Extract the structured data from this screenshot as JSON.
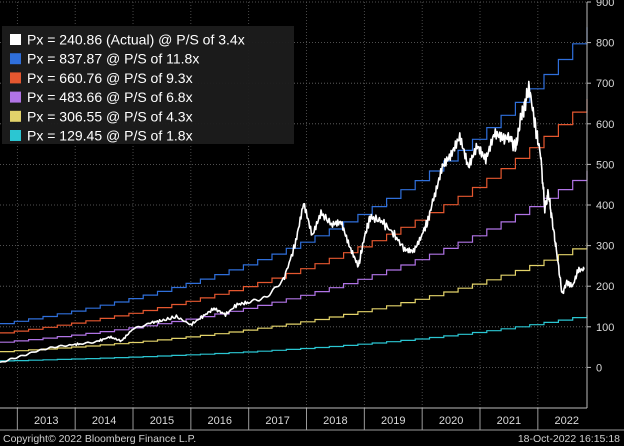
{
  "chart_data": {
    "type": "line",
    "title": "",
    "xlabel": "",
    "ylabel": "",
    "x_categories": [
      "2013",
      "2014",
      "2015",
      "2016",
      "2017",
      "2018",
      "2019",
      "2020",
      "2021",
      "2022"
    ],
    "x_range": [
      2012.7,
      2022.85
    ],
    "ylim": [
      -100,
      900
    ],
    "y_ticks": [
      0,
      100,
      200,
      300,
      400,
      500,
      600,
      700,
      800,
      900
    ],
    "y_tick_labels": [
      "0",
      "100",
      "200",
      "300",
      "400",
      "500",
      "600",
      "700",
      "800",
      "900"
    ],
    "grid": true,
    "legend_position": "top-left",
    "series": [
      {
        "name": "Px = 240.86 (Actual) @ P/S of 3.4x",
        "color": "#ffffff",
        "kind": "price",
        "x": [
          2012.7,
          2013.0,
          2013.3,
          2013.6,
          2013.9,
          2014.1,
          2014.4,
          2014.6,
          2014.8,
          2015.0,
          2015.3,
          2015.5,
          2015.75,
          2016.0,
          2016.2,
          2016.4,
          2016.6,
          2016.8,
          2017.0,
          2017.3,
          2017.6,
          2017.8,
          2017.95,
          2018.1,
          2018.25,
          2018.45,
          2018.6,
          2018.75,
          2018.9,
          2019.0,
          2019.1,
          2019.3,
          2019.5,
          2019.7,
          2019.85,
          2020.0,
          2020.1,
          2020.2,
          2020.35,
          2020.5,
          2020.65,
          2020.8,
          2020.95,
          2021.1,
          2021.25,
          2021.4,
          2021.5,
          2021.62,
          2021.7,
          2021.78,
          2021.85,
          2021.95,
          2022.05,
          2022.12,
          2022.18,
          2022.25,
          2022.32,
          2022.42,
          2022.5,
          2022.6,
          2022.7,
          2022.8
        ],
        "y": [
          10,
          25,
          40,
          48,
          55,
          58,
          65,
          75,
          65,
          95,
          110,
          115,
          125,
          105,
          125,
          145,
          130,
          155,
          160,
          175,
          215,
          300,
          400,
          320,
          380,
          350,
          360,
          300,
          250,
          320,
          370,
          360,
          330,
          290,
          290,
          330,
          360,
          420,
          500,
          520,
          560,
          490,
          550,
          520,
          580,
          560,
          570,
          540,
          610,
          650,
          690,
          600,
          520,
          390,
          430,
          360,
          290,
          180,
          210,
          200,
          240,
          241
        ]
      },
      {
        "name": "Px = 837.87 @ P/S of 11.8x",
        "color": "#2f6fdb",
        "kind": "step",
        "y_start": 108,
        "y_end": 838
      },
      {
        "name": "Px = 660.76 @ P/S of 9.3x",
        "color": "#e5572f",
        "kind": "step",
        "y_start": 85,
        "y_end": 661
      },
      {
        "name": "Px = 483.66 @ P/S of 6.8x",
        "color": "#b174e6",
        "kind": "step",
        "y_start": 62,
        "y_end": 484
      },
      {
        "name": "Px = 306.55 @ P/S of 4.3x",
        "color": "#e3d36a",
        "kind": "step",
        "y_start": 39,
        "y_end": 307
      },
      {
        "name": "Px = 129.45 @ P/S of 1.8x",
        "color": "#2bc6d2",
        "kind": "step",
        "y_start": 16,
        "y_end": 129
      }
    ]
  },
  "footer": {
    "copyright": "Copyright© 2022 Bloomberg Finance L.P.",
    "date": "18-Oct-2022 16:15:18"
  }
}
